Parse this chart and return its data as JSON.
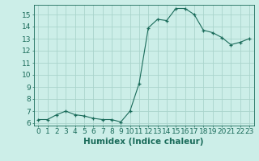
{
  "x": [
    0,
    1,
    2,
    3,
    4,
    5,
    6,
    7,
    8,
    9,
    10,
    11,
    12,
    13,
    14,
    15,
    16,
    17,
    18,
    19,
    20,
    21,
    22,
    23
  ],
  "y": [
    6.3,
    6.3,
    6.7,
    7.0,
    6.7,
    6.6,
    6.4,
    6.3,
    6.3,
    6.1,
    7.0,
    9.3,
    13.9,
    14.6,
    14.5,
    15.5,
    15.5,
    15.0,
    13.7,
    13.5,
    13.1,
    12.5,
    12.7,
    13.0
  ],
  "line_color": "#1a6b5a",
  "marker": "+",
  "marker_size": 3,
  "background_color": "#cceee8",
  "grid_color": "#aad4cc",
  "xlabel": "Humidex (Indice chaleur)",
  "xlim": [
    -0.5,
    23.5
  ],
  "ylim": [
    5.8,
    15.8
  ],
  "yticks": [
    6,
    7,
    8,
    9,
    10,
    11,
    12,
    13,
    14,
    15
  ],
  "xticks": [
    0,
    1,
    2,
    3,
    4,
    5,
    6,
    7,
    8,
    9,
    10,
    11,
    12,
    13,
    14,
    15,
    16,
    17,
    18,
    19,
    20,
    21,
    22,
    23
  ],
  "tick_color": "#1a6b5a",
  "label_color": "#1a6b5a",
  "font_size": 6.5,
  "xlabel_size": 7.5
}
